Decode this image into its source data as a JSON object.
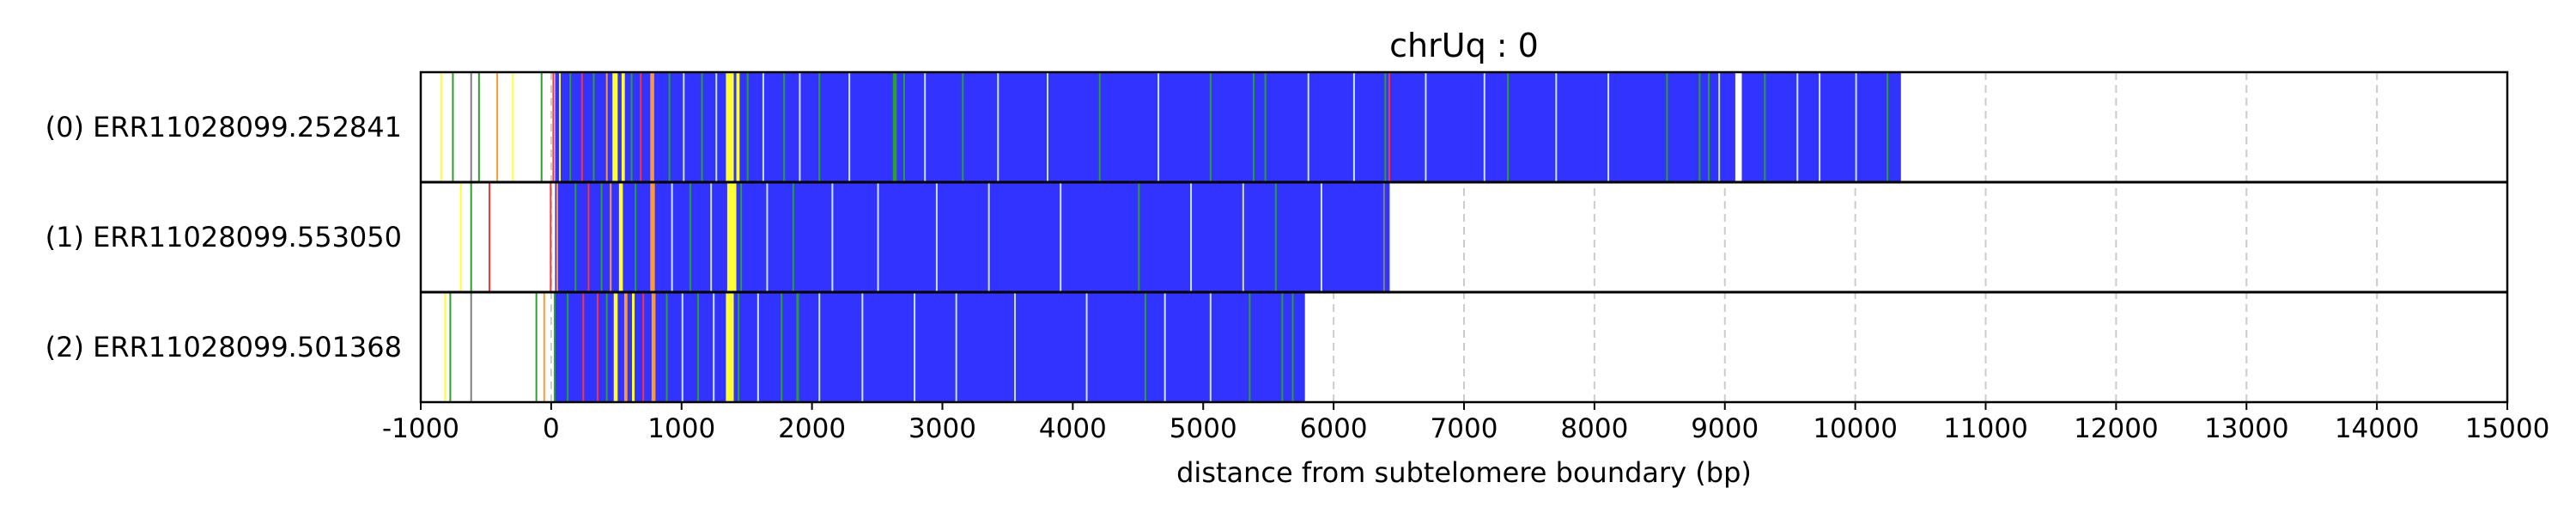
{
  "chart_data": {
    "type": "bar",
    "title": "chrUq : 0",
    "xlabel": "distance from subtelomere boundary (bp)",
    "ylabel": "",
    "xlim": [
      -1000,
      15000
    ],
    "xticks": [
      -1000,
      0,
      1000,
      2000,
      3000,
      4000,
      5000,
      6000,
      7000,
      8000,
      9000,
      10000,
      11000,
      12000,
      13000,
      14000,
      15000
    ],
    "grid": "vertical dashed",
    "colors": {
      "repeat": "#3333ff",
      "green": "#2ca02c",
      "yellow": "#ffff33",
      "orange": "#ff9933",
      "red": "#ff3333",
      "gray": "#808080",
      "light": "#cce0ff",
      "grid": "#cccccc"
    },
    "reads": [
      {
        "label": "(0) ERR11028099.252841",
        "start": -1000,
        "end": 10350,
        "blue_spans": [
          [
            30,
            9080
          ],
          [
            9130,
            10350
          ]
        ],
        "marks": [
          {
            "x": -850,
            "c": "yellow"
          },
          {
            "x": -760,
            "c": "green"
          },
          {
            "x": -620,
            "c": "gray"
          },
          {
            "x": -560,
            "c": "green"
          },
          {
            "x": -420,
            "c": "orange"
          },
          {
            "x": -300,
            "c": "yellow"
          },
          {
            "x": -80,
            "c": "green"
          },
          {
            "x": 10,
            "c": "red"
          },
          {
            "x": 60,
            "c": "yellow"
          },
          {
            "x": 140,
            "c": "green"
          },
          {
            "x": 230,
            "c": "red"
          },
          {
            "x": 320,
            "c": "green"
          },
          {
            "x": 420,
            "c": "orange"
          },
          {
            "x": 470,
            "c": "yellow",
            "w": 40
          },
          {
            "x": 540,
            "c": "yellow",
            "w": 25
          },
          {
            "x": 610,
            "c": "green"
          },
          {
            "x": 680,
            "c": "red"
          },
          {
            "x": 760,
            "c": "orange",
            "w": 30
          },
          {
            "x": 900,
            "c": "green"
          },
          {
            "x": 1010,
            "c": "light"
          },
          {
            "x": 1150,
            "c": "green"
          },
          {
            "x": 1260,
            "c": "light"
          },
          {
            "x": 1340,
            "c": "yellow",
            "w": 60
          },
          {
            "x": 1420,
            "c": "yellow",
            "w": 25
          },
          {
            "x": 1500,
            "c": "green"
          },
          {
            "x": 1620,
            "c": "light"
          },
          {
            "x": 1780,
            "c": "green"
          },
          {
            "x": 1900,
            "c": "light"
          },
          {
            "x": 2050,
            "c": "green"
          },
          {
            "x": 2280,
            "c": "light"
          },
          {
            "x": 2620,
            "c": "green",
            "w": 30
          },
          {
            "x": 2700,
            "c": "green"
          },
          {
            "x": 2860,
            "c": "light"
          },
          {
            "x": 3150,
            "c": "green"
          },
          {
            "x": 3420,
            "c": "light"
          },
          {
            "x": 3800,
            "c": "light"
          },
          {
            "x": 4200,
            "c": "green"
          },
          {
            "x": 4650,
            "c": "light"
          },
          {
            "x": 5050,
            "c": "green"
          },
          {
            "x": 5380,
            "c": "green"
          },
          {
            "x": 5470,
            "c": "green"
          },
          {
            "x": 5800,
            "c": "light"
          },
          {
            "x": 6150,
            "c": "light"
          },
          {
            "x": 6390,
            "c": "green"
          },
          {
            "x": 6420,
            "c": "red"
          },
          {
            "x": 6700,
            "c": "light"
          },
          {
            "x": 7150,
            "c": "light"
          },
          {
            "x": 7330,
            "c": "green"
          },
          {
            "x": 7700,
            "c": "light"
          },
          {
            "x": 8100,
            "c": "light"
          },
          {
            "x": 8550,
            "c": "green"
          },
          {
            "x": 8800,
            "c": "green"
          },
          {
            "x": 8870,
            "c": "green"
          },
          {
            "x": 8950,
            "c": "light"
          },
          {
            "x": 9300,
            "c": "green"
          },
          {
            "x": 9550,
            "c": "light"
          },
          {
            "x": 9720,
            "c": "light"
          },
          {
            "x": 10000,
            "c": "light"
          },
          {
            "x": 10240,
            "c": "green"
          }
        ]
      },
      {
        "label": "(1) ERR11028099.553050",
        "start": -1000,
        "end": 6430,
        "blue_spans": [
          [
            30,
            6430
          ]
        ],
        "marks": [
          {
            "x": -700,
            "c": "yellow"
          },
          {
            "x": -620,
            "c": "green"
          },
          {
            "x": -480,
            "c": "red"
          },
          {
            "x": -10,
            "c": "red"
          },
          {
            "x": 40,
            "c": "orange"
          },
          {
            "x": 180,
            "c": "green"
          },
          {
            "x": 280,
            "c": "red"
          },
          {
            "x": 380,
            "c": "green"
          },
          {
            "x": 450,
            "c": "orange"
          },
          {
            "x": 520,
            "c": "yellow",
            "w": 30
          },
          {
            "x": 640,
            "c": "green"
          },
          {
            "x": 760,
            "c": "orange",
            "w": 35
          },
          {
            "x": 920,
            "c": "light"
          },
          {
            "x": 1060,
            "c": "green"
          },
          {
            "x": 1220,
            "c": "light"
          },
          {
            "x": 1350,
            "c": "yellow",
            "w": 70
          },
          {
            "x": 1450,
            "c": "green"
          },
          {
            "x": 1650,
            "c": "light"
          },
          {
            "x": 1850,
            "c": "green"
          },
          {
            "x": 2150,
            "c": "light"
          },
          {
            "x": 2500,
            "c": "light"
          },
          {
            "x": 2950,
            "c": "light"
          },
          {
            "x": 3350,
            "c": "light"
          },
          {
            "x": 3900,
            "c": "light"
          },
          {
            "x": 4500,
            "c": "green"
          },
          {
            "x": 4900,
            "c": "light"
          },
          {
            "x": 5300,
            "c": "light"
          },
          {
            "x": 5550,
            "c": "green"
          },
          {
            "x": 5900,
            "c": "light"
          },
          {
            "x": 6380,
            "c": "gray"
          }
        ]
      },
      {
        "label": "(2) ERR11028099.501368",
        "start": -1000,
        "end": 5780,
        "blue_spans": [
          [
            30,
            5780
          ]
        ],
        "marks": [
          {
            "x": -820,
            "c": "yellow"
          },
          {
            "x": -780,
            "c": "green"
          },
          {
            "x": -620,
            "c": "gray"
          },
          {
            "x": -120,
            "c": "green"
          },
          {
            "x": -60,
            "c": "orange"
          },
          {
            "x": 20,
            "c": "green"
          },
          {
            "x": 120,
            "c": "green"
          },
          {
            "x": 240,
            "c": "red"
          },
          {
            "x": 350,
            "c": "red"
          },
          {
            "x": 420,
            "c": "green"
          },
          {
            "x": 480,
            "c": "yellow",
            "w": 30
          },
          {
            "x": 560,
            "c": "orange",
            "w": 25
          },
          {
            "x": 620,
            "c": "yellow",
            "w": 20
          },
          {
            "x": 700,
            "c": "red"
          },
          {
            "x": 770,
            "c": "orange",
            "w": 30
          },
          {
            "x": 880,
            "c": "green"
          },
          {
            "x": 1000,
            "c": "light"
          },
          {
            "x": 1120,
            "c": "green"
          },
          {
            "x": 1240,
            "c": "light"
          },
          {
            "x": 1340,
            "c": "yellow",
            "w": 60
          },
          {
            "x": 1430,
            "c": "green"
          },
          {
            "x": 1580,
            "c": "light"
          },
          {
            "x": 1760,
            "c": "green"
          },
          {
            "x": 1880,
            "c": "green",
            "w": 20
          },
          {
            "x": 2050,
            "c": "light"
          },
          {
            "x": 2380,
            "c": "light"
          },
          {
            "x": 2780,
            "c": "light"
          },
          {
            "x": 3100,
            "c": "light"
          },
          {
            "x": 3550,
            "c": "light"
          },
          {
            "x": 4100,
            "c": "light"
          },
          {
            "x": 4550,
            "c": "green"
          },
          {
            "x": 4700,
            "c": "light"
          },
          {
            "x": 5050,
            "c": "light"
          },
          {
            "x": 5350,
            "c": "green"
          },
          {
            "x": 5600,
            "c": "green"
          },
          {
            "x": 5680,
            "c": "green"
          }
        ]
      }
    ]
  }
}
